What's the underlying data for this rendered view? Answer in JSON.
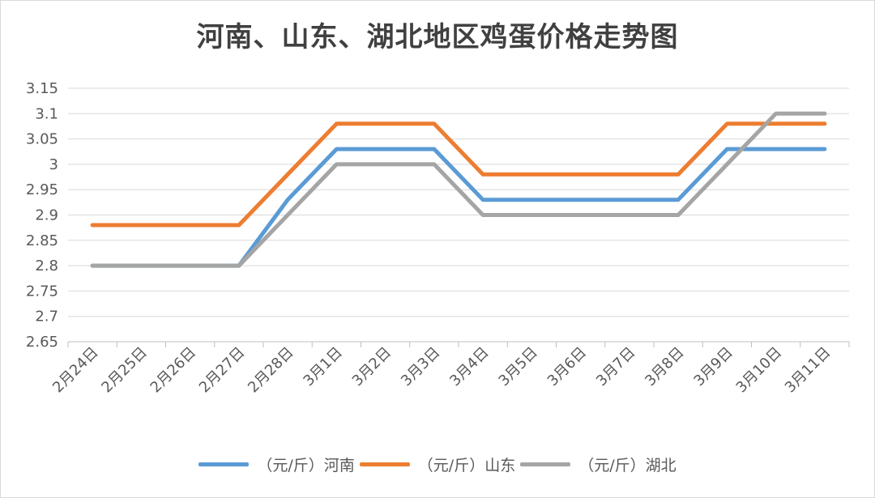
{
  "chart_data": {
    "type": "line",
    "title": "河南、山东、湖北地区鸡蛋价格走势图",
    "xlabel": "",
    "ylabel": "",
    "categories": [
      "2月24日",
      "2月25日",
      "2月26日",
      "2月27日",
      "2月28日",
      "3月1日",
      "3月2日",
      "3月3日",
      "3月4日",
      "3月5日",
      "3月6日",
      "3月7日",
      "3月8日",
      "3月9日",
      "3月10日",
      "3月11日"
    ],
    "ylim": [
      2.65,
      3.15
    ],
    "yticks": [
      "2.65",
      "2.7",
      "2.75",
      "2.8",
      "2.85",
      "2.9",
      "2.95",
      "3",
      "3.05",
      "3.1",
      "3.15"
    ],
    "grid": true,
    "legend": "bottom",
    "series": [
      {
        "name": "（元/斤）河南",
        "color": "#5b9bd5",
        "values": [
          2.8,
          2.8,
          2.8,
          2.8,
          2.93,
          3.03,
          3.03,
          3.03,
          2.93,
          2.93,
          2.93,
          2.93,
          2.93,
          3.03,
          3.03,
          3.03
        ]
      },
      {
        "name": "（元/斤）山东",
        "color": "#ed7d31",
        "values": [
          2.88,
          2.88,
          2.88,
          2.88,
          2.98,
          3.08,
          3.08,
          3.08,
          2.98,
          2.98,
          2.98,
          2.98,
          2.98,
          3.08,
          3.08,
          3.08
        ]
      },
      {
        "name": "（元/斤）湖北",
        "color": "#a5a5a5",
        "values": [
          2.8,
          2.8,
          2.8,
          2.8,
          2.9,
          3.0,
          3.0,
          3.0,
          2.9,
          2.9,
          2.9,
          2.9,
          2.9,
          3.0,
          3.1,
          3.1
        ]
      }
    ]
  }
}
